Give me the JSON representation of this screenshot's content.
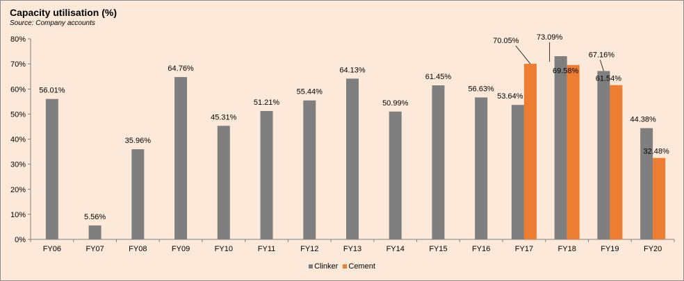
{
  "title": "Capacity utilisation (%)",
  "subtitle": "Source: Company accounts",
  "colors": {
    "clinker": "#7f7f7f",
    "cement": "#ed7d31"
  },
  "chart_data": {
    "type": "bar",
    "categories": [
      "FY06",
      "FY07",
      "FY08",
      "FY09",
      "FY10",
      "FY11",
      "FY12",
      "FY13",
      "FY14",
      "FY15",
      "FY16",
      "FY17",
      "FY18",
      "FY19",
      "FY20"
    ],
    "series": [
      {
        "name": "Clinker",
        "values": [
          56.01,
          5.56,
          35.96,
          64.76,
          45.31,
          51.21,
          55.44,
          64.13,
          50.99,
          61.45,
          56.63,
          53.64,
          73.09,
          67.16,
          44.38
        ]
      },
      {
        "name": "Cement",
        "values": [
          null,
          null,
          null,
          null,
          null,
          null,
          null,
          null,
          null,
          null,
          null,
          70.05,
          69.58,
          61.54,
          32.48
        ]
      }
    ],
    "labels": {
      "Clinker": [
        "56.01%",
        "5.56%",
        "35.96%",
        "64.76%",
        "45.31%",
        "51.21%",
        "55.44%",
        "64.13%",
        "50.99%",
        "61.45%",
        "56.63%",
        "53.64%",
        "73.09%",
        "67.16%",
        "44.38%"
      ],
      "Cement": [
        null,
        null,
        null,
        null,
        null,
        null,
        null,
        null,
        null,
        null,
        null,
        "70.05%",
        "69.58%",
        "61.54%",
        "32.48%"
      ]
    },
    "ylim": [
      0,
      80
    ],
    "yticks": [
      "0%",
      "10%",
      "20%",
      "30%",
      "40%",
      "50%",
      "60%",
      "70%",
      "80%"
    ],
    "grid": false,
    "legend_position": "bottom-center"
  }
}
